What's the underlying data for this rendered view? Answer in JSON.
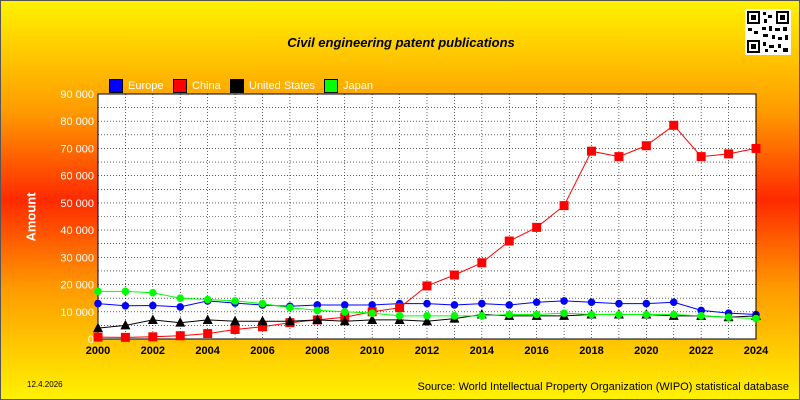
{
  "footer": {
    "date": "12.4.2026",
    "source": "Source: World Intellectual Property Organization (WIPO) statistical database"
  },
  "legend": [
    {
      "label": "Europe",
      "color": "#0000ff"
    },
    {
      "label": "China",
      "color": "#ff0000"
    },
    {
      "label": "United States",
      "color": "#000000"
    },
    {
      "label": "Japan",
      "color": "#00ff00"
    }
  ],
  "chart_data": {
    "type": "line",
    "title": "Civil engineering patent publications",
    "xlabel": "",
    "ylabel": "Amount",
    "x": [
      2000,
      2001,
      2002,
      2003,
      2004,
      2005,
      2006,
      2007,
      2008,
      2009,
      2010,
      2011,
      2012,
      2013,
      2014,
      2015,
      2016,
      2017,
      2018,
      2019,
      2020,
      2021,
      2022,
      2023,
      2024
    ],
    "xlim": [
      2000,
      2024
    ],
    "ylim": [
      0,
      90000
    ],
    "x_ticks": [
      "2000",
      "2002",
      "2004",
      "2006",
      "2008",
      "2010",
      "2012",
      "2014",
      "2016",
      "2018",
      "2020",
      "2022",
      "2024"
    ],
    "y_ticks": [
      "0",
      "10 000",
      "20 000",
      "30 000",
      "40 000",
      "50 000",
      "60 000",
      "70 000",
      "80 000",
      "90 000"
    ],
    "grid": true,
    "legend_position": "top-left",
    "series": [
      {
        "name": "Europe",
        "color": "#0000ff",
        "marker": "circle",
        "values": [
          13000,
          12200,
          12300,
          11800,
          14000,
          13200,
          12500,
          12000,
          12500,
          12500,
          12500,
          13000,
          13000,
          12500,
          13000,
          12500,
          13500,
          14000,
          13500,
          13000,
          13000,
          13500,
          10500,
          9500,
          9000
        ]
      },
      {
        "name": "China",
        "color": "#ff0000",
        "marker": "square",
        "values": [
          700,
          600,
          800,
          1200,
          2000,
          3500,
          4500,
          6000,
          7000,
          8000,
          10000,
          11500,
          19500,
          23500,
          28000,
          36000,
          41000,
          49000,
          69000,
          67000,
          71000,
          78500,
          67000,
          68000,
          70000
        ]
      },
      {
        "name": "United States",
        "color": "#000000",
        "marker": "triangle",
        "values": [
          4000,
          5000,
          7000,
          6000,
          7000,
          6500,
          6500,
          6500,
          7000,
          6500,
          7000,
          7000,
          6500,
          7500,
          9000,
          8500,
          8500,
          8500,
          9000,
          9000,
          9000,
          8500,
          8500,
          8000,
          8500
        ]
      },
      {
        "name": "Japan",
        "color": "#00ff00",
        "marker": "circle",
        "values": [
          17500,
          17500,
          17000,
          15000,
          14500,
          14000,
          13000,
          11500,
          10500,
          10000,
          9500,
          8500,
          8500,
          8500,
          8500,
          9000,
          9000,
          9500,
          9000,
          9000,
          9000,
          9000,
          8500,
          8000,
          7500
        ]
      }
    ]
  }
}
